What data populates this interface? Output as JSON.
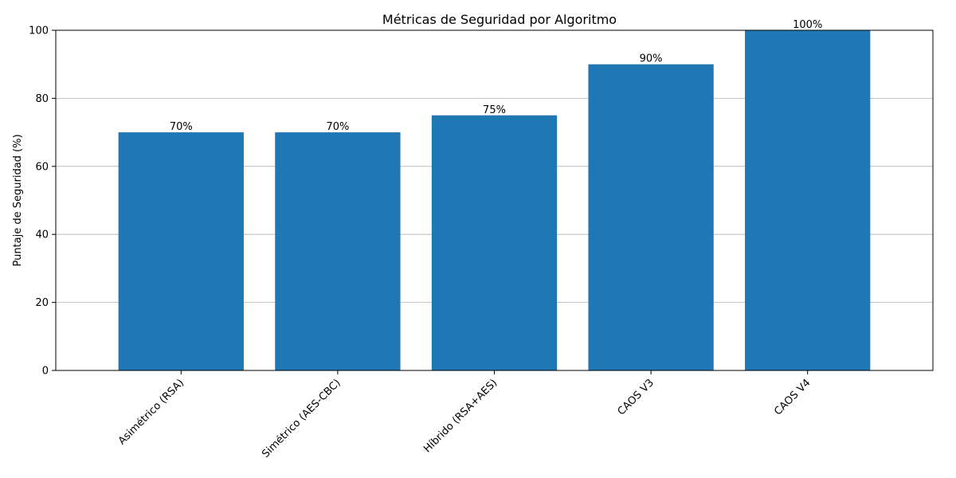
{
  "chart_data": {
    "type": "bar",
    "title": "Métricas de Seguridad por Algoritmo",
    "xlabel": "",
    "ylabel": "Puntaje de Seguridad (%)",
    "categories": [
      "Asimétrico (RSA)",
      "Simétrico (AES-CBC)",
      "Híbrido (RSA+AES)",
      "CAOS V3",
      "CAOS V4"
    ],
    "values": [
      70,
      70,
      75,
      90,
      100
    ],
    "value_labels": [
      "70%",
      "70%",
      "75%",
      "90%",
      "100%"
    ],
    "ylim": [
      0,
      100
    ],
    "yticks": [
      0,
      20,
      40,
      60,
      80,
      100
    ],
    "grid": "horizontal",
    "legend": "none",
    "bar_color": "#1f77b4"
  }
}
